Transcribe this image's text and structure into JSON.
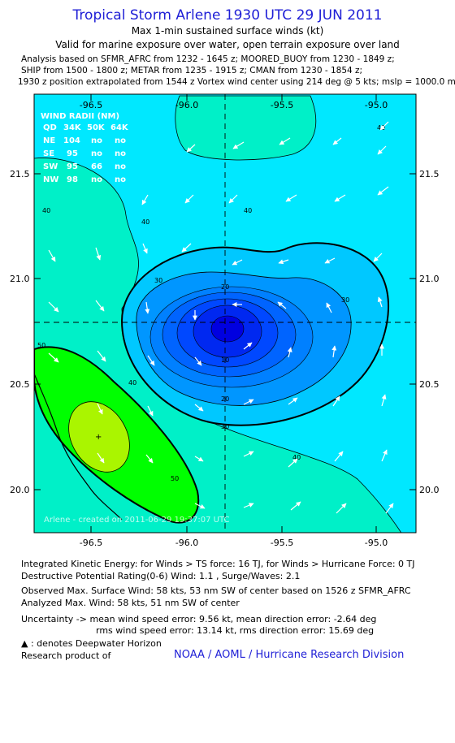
{
  "header": {
    "title": "Tropical Storm Arlene 1930 UTC 29 JUN 2011",
    "subtitle": "Max 1-min sustained surface winds (kt)",
    "validity": "Valid for marine exposure over water, open terrain exposure over land",
    "analysis_line1": "Analysis based on SFMR_AFRC from 1232 - 1645 z; MOORED_BUOY from 1230 - 1849 z;",
    "analysis_line2": "SHIP from 1500 - 1800 z; METAR from 1235 - 1915 z; CMAN from 1230 - 1854 z;",
    "analysis_line3": "1930 z position extrapolated from 1544 z Vortex wind center using 214 deg @ 5 kts; mslp = 1000.0 mb"
  },
  "map": {
    "lon_ticks": [
      "-96.5",
      "-96.0",
      "-95.5",
      "-95.0"
    ],
    "lat_ticks": [
      "21.5",
      "21.0",
      "20.5",
      "20.0"
    ],
    "center": {
      "lon": -95.8,
      "lat": 20.78
    },
    "contour_labels": [
      "40",
      "40",
      "40",
      "30",
      "20",
      "10",
      "20",
      "30",
      "40",
      "30",
      "50",
      "50",
      "40",
      "40"
    ],
    "watermark": "Arlene - created on 2011-06-29 19:37:07 UTC",
    "colors": {
      "field_light": "#00e8ff",
      "field_mid": "#00f0c8",
      "field_green": "#00ff9a",
      "core_green": "#00ff00",
      "max_yellow": "#aaf500",
      "ring_30": "#0096ff",
      "ring_20": "#0064ff",
      "core_blue": "#0000e0"
    }
  },
  "wind_radii": {
    "title": "WIND RADII (NM)",
    "header": [
      "QD",
      "34K",
      "50K",
      "64K"
    ],
    "rows": [
      [
        "NE",
        "104",
        "no",
        "no"
      ],
      [
        "SE",
        "95",
        "no",
        "no"
      ],
      [
        "SW",
        "95",
        "66",
        "no"
      ],
      [
        "NW",
        "98",
        "no",
        "no"
      ]
    ]
  },
  "footer": {
    "ike": "Integrated Kinetic Energy:  for Winds > TS force: 16 TJ,  for Winds > Hurricane Force: 0 TJ",
    "dpr": "Destructive Potential Rating(0-6)   Wind: 1.1 , Surge/Waves: 2.1",
    "observed_max": "Observed Max. Surface Wind: 58 kts, 53 nm SW of center based on 1526 z SFMR_AFRC",
    "analyzed_max": "Analyzed Max. Wind: 58 kts, 51 nm SW of center",
    "uncertainty1": "Uncertainty -> mean wind speed error: 9.56 kt,   mean direction error:  -2.64 deg",
    "uncertainty2": "rms wind speed error: 13.14 kt,   rms direction error: 15.69 deg",
    "legend": ": denotes Deepwater Horizon",
    "research": "Research product of",
    "credit": "NOAA / AOML / Hurricane Research Division"
  }
}
